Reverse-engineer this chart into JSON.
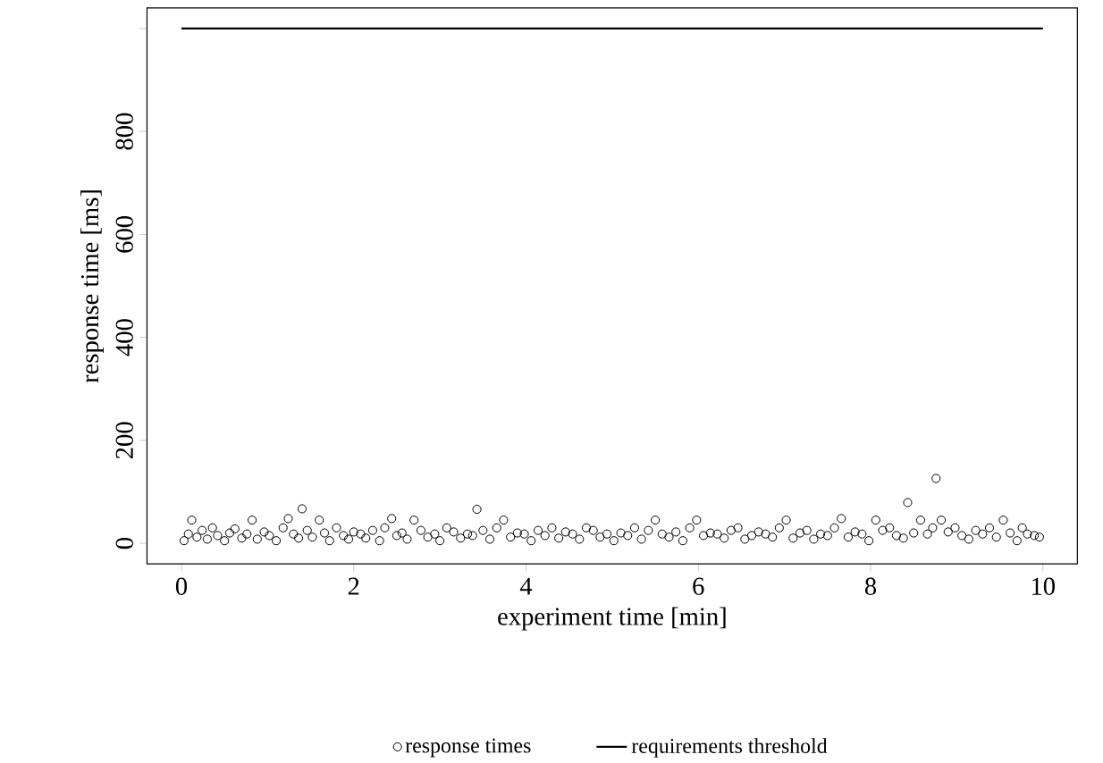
{
  "chart_data": {
    "type": "scatter",
    "xlabel": "experiment time [min]",
    "ylabel": "response time [ms]",
    "xlim": [
      -0.4,
      10.4
    ],
    "ylim": [
      -40,
      1040
    ],
    "xticks": [
      0,
      2,
      4,
      6,
      8,
      10
    ],
    "yticks": [
      0,
      200,
      400,
      600,
      800,
      {
        "value": 1000,
        "label": null
      }
    ],
    "grid": false,
    "legend": "bottom",
    "marker": "circle",
    "series": [
      {
        "name": "response times",
        "color": "#000000",
        "x": [
          0.03,
          0.08,
          0.12,
          0.18,
          0.24,
          0.3,
          0.36,
          0.42,
          0.5,
          0.56,
          0.62,
          0.7,
          0.76,
          0.82,
          0.88,
          0.96,
          1.02,
          1.1,
          1.18,
          1.24,
          1.3,
          1.36,
          1.4,
          1.46,
          1.52,
          1.6,
          1.66,
          1.72,
          1.8,
          1.88,
          1.94,
          2.0,
          2.08,
          2.14,
          2.22,
          2.3,
          2.36,
          2.44,
          2.5,
          2.56,
          2.62,
          2.7,
          2.78,
          2.86,
          2.94,
          3.0,
          3.08,
          3.16,
          3.24,
          3.32,
          3.38,
          3.43,
          3.5,
          3.58,
          3.66,
          3.74,
          3.82,
          3.9,
          3.98,
          4.06,
          4.14,
          4.22,
          4.3,
          4.38,
          4.46,
          4.54,
          4.62,
          4.7,
          4.78,
          4.86,
          4.94,
          5.02,
          5.1,
          5.18,
          5.26,
          5.34,
          5.42,
          5.5,
          5.58,
          5.66,
          5.74,
          5.82,
          5.9,
          5.98,
          6.06,
          6.14,
          6.22,
          6.3,
          6.38,
          6.46,
          6.54,
          6.62,
          6.7,
          6.78,
          6.86,
          6.94,
          7.02,
          7.1,
          7.18,
          7.26,
          7.34,
          7.42,
          7.5,
          7.58,
          7.66,
          7.74,
          7.82,
          7.9,
          7.98,
          8.06,
          8.14,
          8.22,
          8.3,
          8.38,
          8.43,
          8.5,
          8.58,
          8.66,
          8.72,
          8.76,
          8.82,
          8.9,
          8.98,
          9.06,
          9.14,
          9.22,
          9.3,
          9.38,
          9.46,
          9.54,
          9.62,
          9.7,
          9.76,
          9.82,
          9.9,
          9.96
        ],
        "values": [
          5,
          18,
          45,
          12,
          25,
          8,
          30,
          15,
          5,
          20,
          28,
          10,
          18,
          45,
          8,
          22,
          15,
          5,
          30,
          48,
          18,
          10,
          67,
          25,
          12,
          45,
          20,
          5,
          30,
          15,
          8,
          22,
          18,
          10,
          25,
          5,
          30,
          48,
          15,
          20,
          8,
          45,
          25,
          12,
          18,
          5,
          30,
          22,
          10,
          18,
          15,
          66,
          25,
          8,
          30,
          45,
          12,
          20,
          18,
          5,
          25,
          15,
          30,
          10,
          22,
          18,
          8,
          30,
          25,
          12,
          18,
          5,
          20,
          15,
          30,
          8,
          25,
          45,
          18,
          12,
          22,
          5,
          30,
          45,
          15,
          20,
          18,
          10,
          25,
          30,
          8,
          15,
          22,
          18,
          12,
          30,
          45,
          10,
          20,
          25,
          8,
          18,
          15,
          30,
          48,
          12,
          22,
          18,
          5,
          45,
          25,
          30,
          15,
          10,
          79,
          20,
          45,
          18,
          30,
          126,
          45,
          22,
          30,
          15,
          8,
          25,
          18,
          30,
          12,
          45,
          20,
          5,
          30,
          18,
          15,
          12
        ]
      },
      {
        "name": "requirements threshold",
        "type": "line",
        "color": "#000000",
        "marker": "none",
        "line_style": "solid",
        "x": [
          0,
          10
        ],
        "values": [
          1000,
          1000
        ]
      }
    ]
  }
}
